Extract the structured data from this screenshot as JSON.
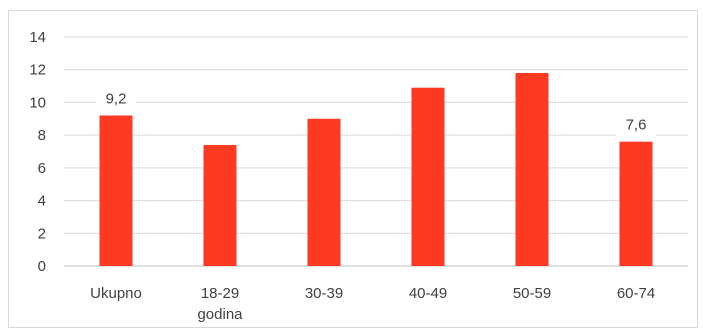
{
  "chart_data": {
    "type": "bar",
    "title": "",
    "xlabel": "",
    "ylabel": "",
    "categories": [
      [
        "Ukupno"
      ],
      [
        "18-29",
        "godina"
      ],
      [
        "30-39"
      ],
      [
        "40-49"
      ],
      [
        "50-59"
      ],
      [
        "60-74"
      ]
    ],
    "values": [
      9.2,
      7.4,
      9.0,
      10.9,
      11.8,
      7.6
    ],
    "ylim": [
      0,
      14
    ],
    "yticks": [
      "0",
      "2",
      "4",
      "6",
      "8",
      "10",
      "12",
      "14"
    ],
    "data_labels": [
      {
        "index": 0,
        "text": "9,2"
      },
      {
        "index": 5,
        "text": "7,6"
      }
    ],
    "grid": true,
    "legend": "none",
    "colors": {
      "bar": "#ff3a22",
      "grid": "#d9d9d9",
      "text": "#404040"
    }
  }
}
